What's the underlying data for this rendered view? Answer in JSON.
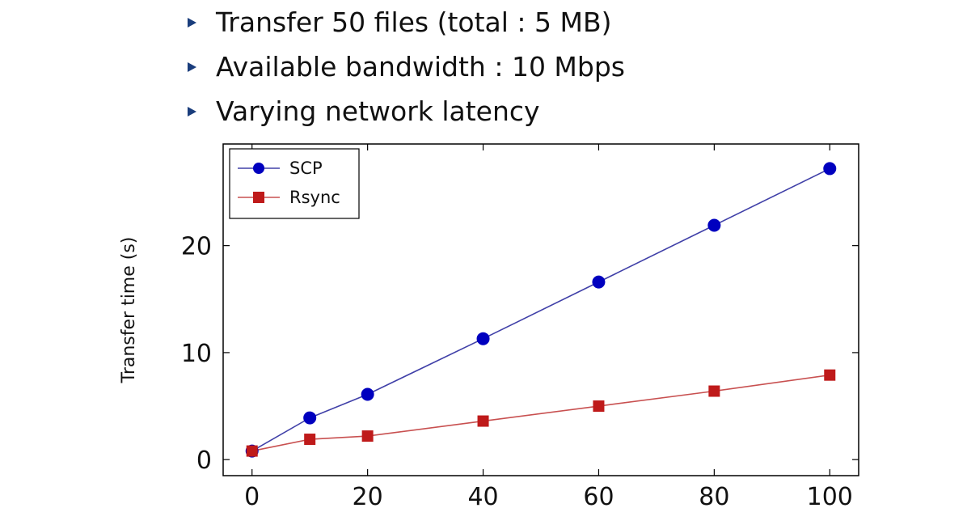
{
  "bullets": [
    "Transfer 50 files (total : 5 MB)",
    "Available bandwidth : 10 Mbps",
    "Varying network latency"
  ],
  "colors": {
    "bullet": "#1a3d7c",
    "scp": "#0000bf",
    "scp_line": "#4040a8",
    "rsync": "#bf1a1a",
    "rsync_line": "#c85050"
  },
  "chart_data": {
    "type": "line",
    "title": "",
    "xlabel": "",
    "ylabel": "Transfer time (s)",
    "xlim": [
      -5,
      105
    ],
    "ylim": [
      -1.5,
      29.5
    ],
    "x_ticks": [
      0,
      20,
      40,
      60,
      80,
      100
    ],
    "y_ticks": [
      0,
      10,
      20
    ],
    "grid": false,
    "legend_position": "top-left",
    "series": [
      {
        "name": "SCP",
        "marker": "circle",
        "x": [
          0,
          10,
          20,
          40,
          60,
          80,
          100
        ],
        "values": [
          0.8,
          3.9,
          6.1,
          11.3,
          16.6,
          21.9,
          27.2
        ]
      },
      {
        "name": "Rsync",
        "marker": "square",
        "x": [
          0,
          10,
          20,
          40,
          60,
          80,
          100
        ],
        "values": [
          0.8,
          1.9,
          2.2,
          3.6,
          5.0,
          6.4,
          7.9
        ]
      }
    ]
  }
}
